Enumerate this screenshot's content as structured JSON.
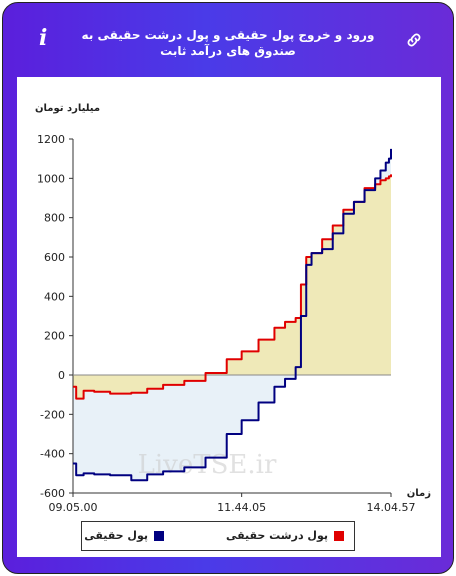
{
  "header": {
    "title": "ورود و خروج پول حقیقی و پول درشت حقیقی به صندوق های درآمد ثابت",
    "info_icon": "i",
    "link_icon": "link-icon"
  },
  "colors": {
    "frame_gradient": [
      "#5b1fdc",
      "#4a3be8",
      "#6a2bd8"
    ],
    "real_money": "#000080",
    "big_real_money": "#e00000",
    "positive_fill": "#efe9b8",
    "negative_fill": "#e8f1f8"
  },
  "chart_data": {
    "type": "line",
    "ylabel": "میلیارد تومان",
    "xlabel": "زمان",
    "ylim": [
      -600,
      1200
    ],
    "yticks": [
      -600,
      -400,
      -200,
      0,
      200,
      400,
      600,
      800,
      1000,
      1200
    ],
    "xlim": [
      "09.05.00",
      "14.04.57"
    ],
    "xticks": [
      "09.05.00",
      "11.44.05",
      "14.04.57"
    ],
    "watermark": "LiveTSE.ir",
    "legend": [
      "پول حقیقی",
      "پول درشت حقیقی"
    ],
    "series": [
      {
        "name": "پول حقیقی",
        "x": [
          "09.05.00",
          "09.08.00",
          "09.15.00",
          "09.25.00",
          "09.40.00",
          "10.00.00",
          "10.15.00",
          "10.30.00",
          "10.50.00",
          "11.10.00",
          "11.30.00",
          "11.44.05",
          "12.00.00",
          "12.15.00",
          "12.25.00",
          "12.35.00",
          "12.40.00",
          "12.45.00",
          "12.50.00",
          "13.00.00",
          "13.10.00",
          "13.20.00",
          "13.30.00",
          "13.40.00",
          "13.50.00",
          "13.55.00",
          "14.00.00",
          "14.03.00",
          "14.04.57"
        ],
        "y": [
          -450,
          -510,
          -500,
          -505,
          -510,
          -535,
          -505,
          -490,
          -470,
          -420,
          -300,
          -230,
          -140,
          -60,
          -20,
          40,
          300,
          560,
          620,
          640,
          720,
          820,
          880,
          940,
          1000,
          1040,
          1080,
          1100,
          1150
        ]
      },
      {
        "name": "پول درشت حقیقی",
        "x": [
          "09.05.00",
          "09.08.00",
          "09.15.00",
          "09.25.00",
          "09.40.00",
          "10.00.00",
          "10.15.00",
          "10.30.00",
          "10.50.00",
          "11.10.00",
          "11.30.00",
          "11.44.05",
          "12.00.00",
          "12.15.00",
          "12.25.00",
          "12.35.00",
          "12.40.00",
          "12.45.00",
          "12.50.00",
          "13.00.00",
          "13.10.00",
          "13.20.00",
          "13.30.00",
          "13.40.00",
          "13.50.00",
          "13.55.00",
          "14.00.00",
          "14.03.00",
          "14.04.57"
        ],
        "y": [
          -60,
          -120,
          -80,
          -85,
          -95,
          -90,
          -70,
          -50,
          -30,
          10,
          80,
          120,
          180,
          240,
          270,
          290,
          460,
          600,
          620,
          690,
          760,
          840,
          880,
          950,
          970,
          990,
          1000,
          1010,
          1020
        ]
      }
    ]
  }
}
